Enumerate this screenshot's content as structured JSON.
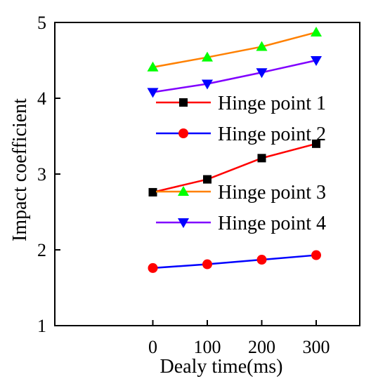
{
  "chart_data": {
    "type": "line",
    "title": "",
    "xlabel": "Dealy time(ms)",
    "ylabel": "Impact coefficient",
    "x": [
      0,
      100,
      200,
      300
    ],
    "xticks": [
      "0",
      "100",
      "200",
      "300"
    ],
    "yticks": [
      "1",
      "2",
      "3",
      "4",
      "5"
    ],
    "xlim": [
      -180,
      380
    ],
    "ylim": [
      1,
      5
    ],
    "grid": false,
    "legend_position": "right",
    "series": [
      {
        "name": "Hinge point 1",
        "color": "#ff0000",
        "marker": "square",
        "marker_color": "#000000",
        "values": [
          2.76,
          2.93,
          3.21,
          3.4
        ]
      },
      {
        "name": "Hinge point 2",
        "color": "#0000ff",
        "marker": "circle",
        "marker_color": "#ff0000",
        "values": [
          1.76,
          1.81,
          1.87,
          1.93
        ]
      },
      {
        "name": "Hinge point 3",
        "color": "#ff8000",
        "marker": "triangle-up",
        "marker_color": "#00ff00",
        "values": [
          4.41,
          4.54,
          4.68,
          4.87
        ]
      },
      {
        "name": "Hinge point 4",
        "color": "#8000ff",
        "marker": "triangle-down",
        "marker_color": "#0000ff",
        "values": [
          4.08,
          4.19,
          4.34,
          4.5
        ]
      }
    ]
  }
}
